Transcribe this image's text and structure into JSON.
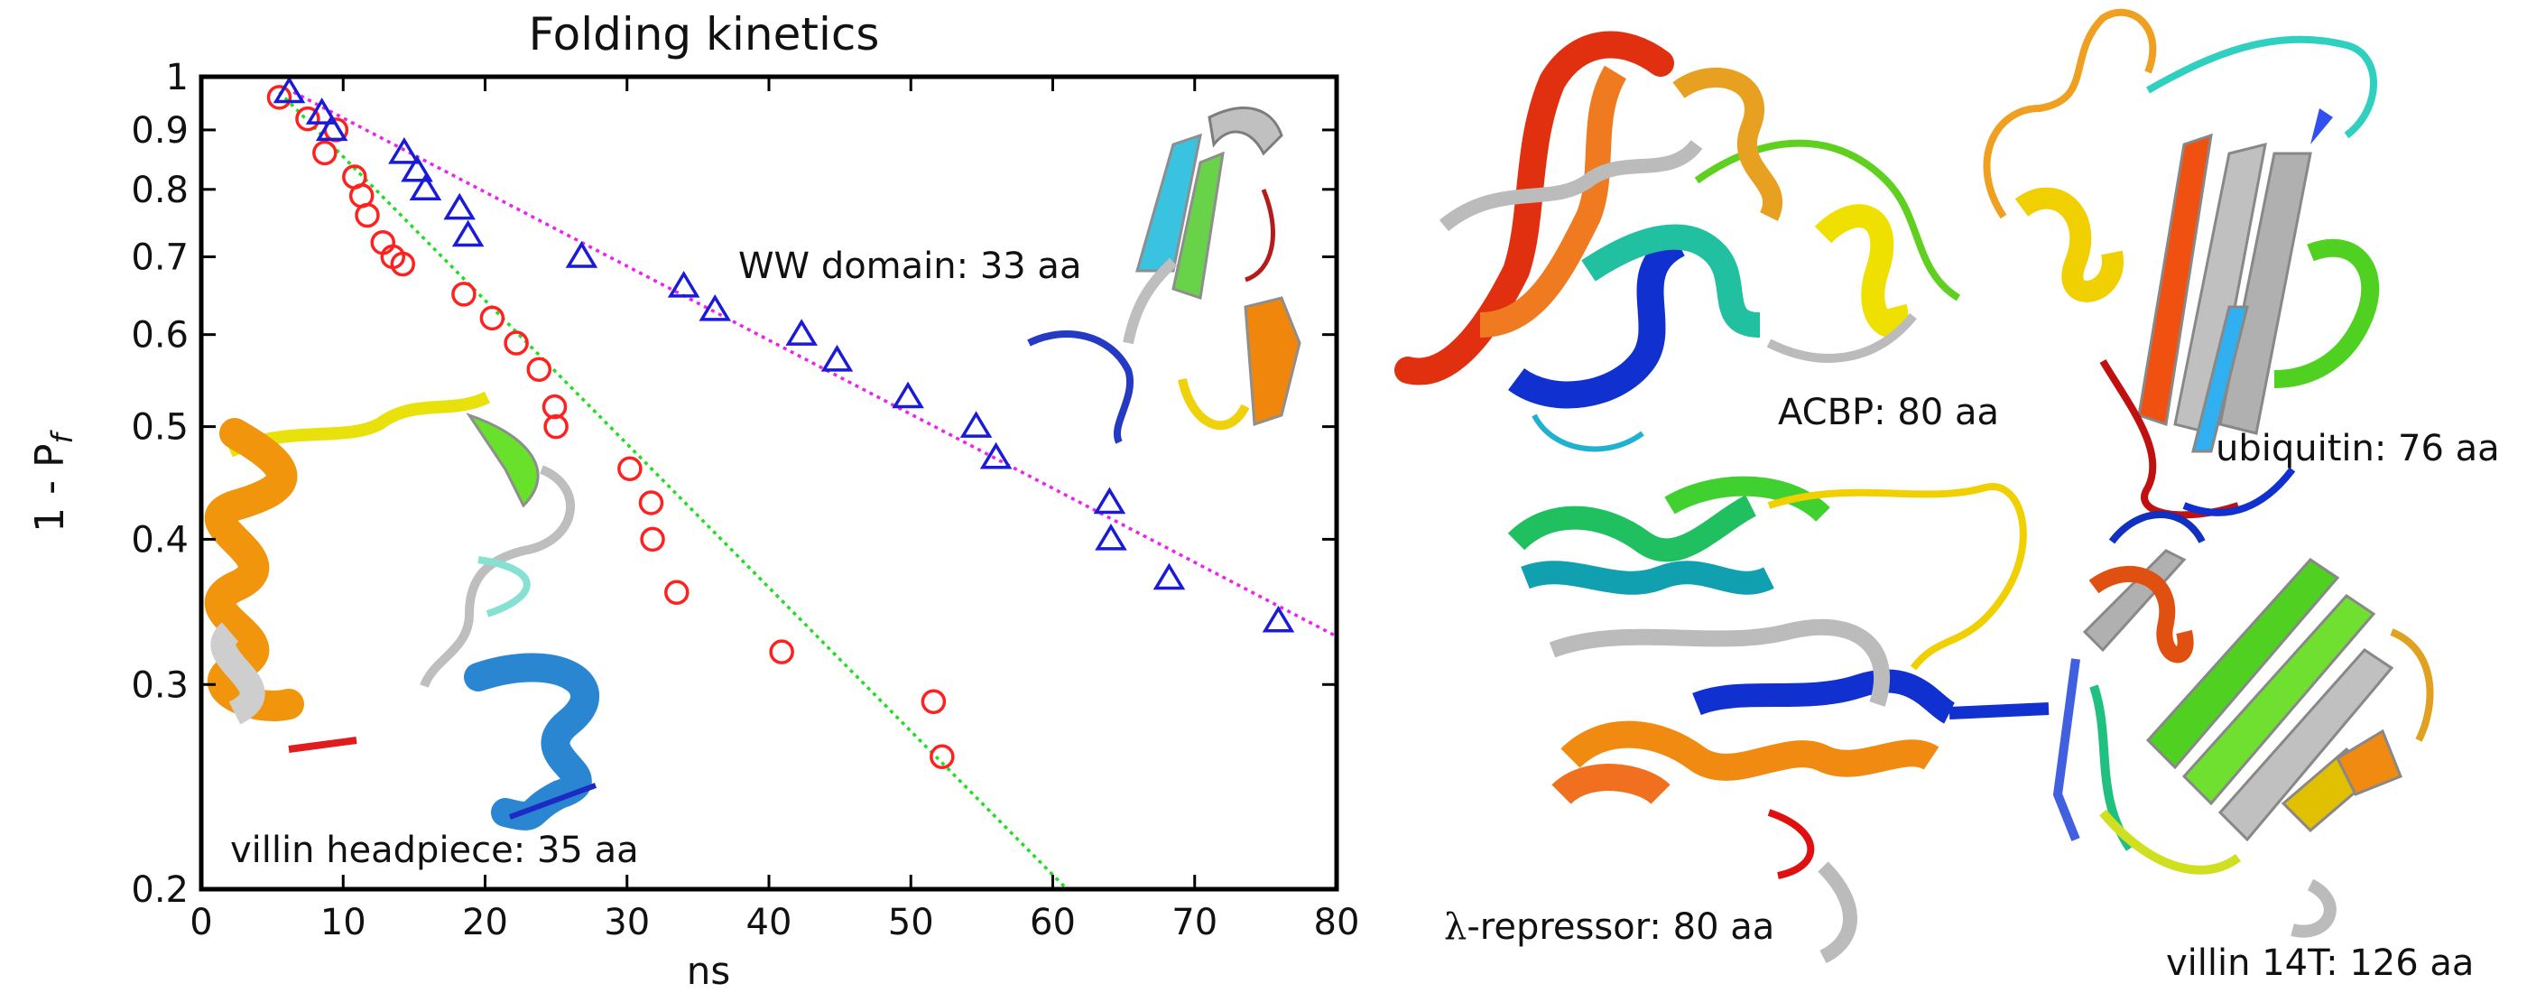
{
  "chart_data": {
    "type": "scatter",
    "title": "Folding kinetics",
    "xlabel": "ns",
    "ylabel_main": "1 - P",
    "ylabel_sub": "f",
    "xlim": [
      0,
      80
    ],
    "ylim": [
      0.2,
      1
    ],
    "y_scale": "log",
    "x_ticks": [
      0,
      10,
      20,
      30,
      40,
      50,
      60,
      70,
      80
    ],
    "y_ticks": [
      0.2,
      0.3,
      0.4,
      0.5,
      0.6,
      0.7,
      0.8,
      0.9,
      1
    ],
    "y_tick_labels": [
      "0.2",
      "0.3",
      "0.4",
      "0.5",
      "0.6",
      "0.7",
      "0.8",
      "0.9",
      "1"
    ],
    "series": [
      {
        "marker": "circle",
        "color": "#ff2020",
        "x": [
          5.5,
          7.5,
          8.7,
          9.5,
          10.8,
          11.3,
          11.7,
          12.8,
          13.5,
          14.2,
          18.5,
          20.5,
          22.2,
          23.8,
          24.9,
          25.0,
          30.2,
          31.7,
          31.8,
          33.5,
          40.9,
          51.6,
          52.2
        ],
        "y": [
          0.96,
          0.92,
          0.86,
          0.9,
          0.82,
          0.79,
          0.76,
          0.72,
          0.7,
          0.69,
          0.65,
          0.62,
          0.59,
          0.56,
          0.52,
          0.5,
          0.46,
          0.43,
          0.4,
          0.36,
          0.32,
          0.29,
          0.26
        ]
      },
      {
        "marker": "triangle",
        "color": "#1a1ad9",
        "x": [
          6.2,
          8.5,
          9.2,
          14.3,
          15.2,
          15.8,
          18.2,
          18.8,
          26.8,
          34.0,
          36.2,
          42.3,
          44.8,
          49.8,
          54.6,
          56.0,
          64.0,
          64.1,
          68.2,
          75.9
        ],
        "y": [
          0.97,
          0.93,
          0.9,
          0.86,
          0.83,
          0.8,
          0.77,
          0.73,
          0.7,
          0.66,
          0.63,
          0.6,
          0.57,
          0.53,
          0.5,
          0.47,
          0.43,
          0.4,
          0.37,
          0.34
        ]
      }
    ],
    "fit_lines": [
      {
        "color": "#22dd22",
        "x": [
          5.5,
          61
        ],
        "y": [
          0.97,
          0.2
        ]
      },
      {
        "color": "#ee22ee",
        "x": [
          6.5,
          80
        ],
        "y": [
          0.97,
          0.33
        ]
      }
    ],
    "annotations": {
      "ww_domain": "WW domain: 33 aa",
      "villin_headpiece": "villin headpiece: 35 aa"
    }
  },
  "panels": {
    "acbp": "ACBP: 80 aa",
    "ubiquitin": "ubiquitin: 76 aa",
    "lambda_symbol": "λ",
    "lambda_label": "-repressor: 80 aa",
    "villin14t": "villin 14T: 126 aa"
  }
}
